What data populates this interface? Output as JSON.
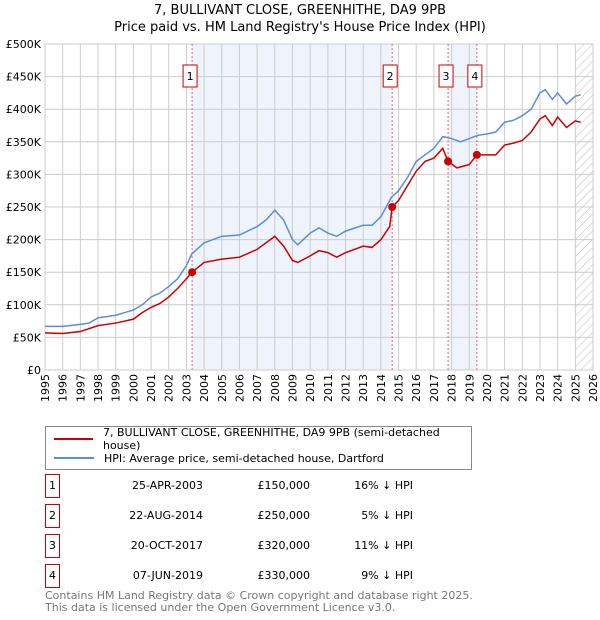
{
  "chart_data": {
    "type": "line",
    "title": "7, BULLIVANT CLOSE, GREENHITHE, DA9 9PB",
    "subtitle": "Price paid vs. HM Land Registry's House Price Index (HPI)",
    "xlim": [
      1995,
      2026
    ],
    "ylim": [
      0,
      500000
    ],
    "x_ticks": [
      "1995",
      "1996",
      "1997",
      "1998",
      "1999",
      "2000",
      "2001",
      "2002",
      "2003",
      "2004",
      "2005",
      "2006",
      "2007",
      "2008",
      "2009",
      "2010",
      "2011",
      "2012",
      "2013",
      "2014",
      "2015",
      "2016",
      "2017",
      "2018",
      "2019",
      "2020",
      "2021",
      "2022",
      "2023",
      "2024",
      "2025",
      "2026"
    ],
    "y_ticks": [
      {
        "v": 0,
        "l": "£0"
      },
      {
        "v": 50000,
        "l": "£50K"
      },
      {
        "v": 100000,
        "l": "£100K"
      },
      {
        "v": 150000,
        "l": "£150K"
      },
      {
        "v": 200000,
        "l": "£200K"
      },
      {
        "v": 250000,
        "l": "£250K"
      },
      {
        "v": 300000,
        "l": "£300K"
      },
      {
        "v": 350000,
        "l": "£350K"
      },
      {
        "v": 400000,
        "l": "£400K"
      },
      {
        "v": 450000,
        "l": "£450K"
      },
      {
        "v": 500000,
        "l": "£500K"
      }
    ],
    "grid": true,
    "series": [
      {
        "name": "7, BULLIVANT CLOSE, GREENHITHE, DA9 9PB (semi-detached house)",
        "color": "#cc0000",
        "points": [
          [
            1995,
            57
          ],
          [
            1996,
            56
          ],
          [
            1997,
            59
          ],
          [
            1998,
            68
          ],
          [
            1999,
            72
          ],
          [
            2000,
            78
          ],
          [
            2000.5,
            88
          ],
          [
            2001,
            96
          ],
          [
            2001.5,
            102
          ],
          [
            2002,
            112
          ],
          [
            2002.5,
            125
          ],
          [
            2003,
            140
          ],
          [
            2003.32,
            150
          ],
          [
            2004,
            165
          ],
          [
            2005,
            170
          ],
          [
            2006,
            173
          ],
          [
            2007,
            185
          ],
          [
            2008,
            205
          ],
          [
            2008.5,
            190
          ],
          [
            2009,
            168
          ],
          [
            2009.3,
            165
          ],
          [
            2010,
            175
          ],
          [
            2010.5,
            183
          ],
          [
            2011,
            180
          ],
          [
            2011.5,
            173
          ],
          [
            2012,
            180
          ],
          [
            2013,
            190
          ],
          [
            2013.5,
            188
          ],
          [
            2014,
            200
          ],
          [
            2014.5,
            220
          ],
          [
            2014.64,
            250
          ],
          [
            2015,
            260
          ],
          [
            2016,
            305
          ],
          [
            2016.5,
            320
          ],
          [
            2017,
            325
          ],
          [
            2017.5,
            340
          ],
          [
            2017.8,
            320
          ],
          [
            2018.3,
            310
          ],
          [
            2019,
            315
          ],
          [
            2019.43,
            330
          ],
          [
            2020,
            330
          ],
          [
            2020.5,
            330
          ],
          [
            2021,
            345
          ],
          [
            2021.5,
            348
          ],
          [
            2022,
            352
          ],
          [
            2022.5,
            365
          ],
          [
            2023,
            385
          ],
          [
            2023.3,
            390
          ],
          [
            2023.7,
            375
          ],
          [
            2024,
            388
          ],
          [
            2024.5,
            372
          ],
          [
            2025,
            382
          ],
          [
            2025.3,
            380
          ]
        ]
      },
      {
        "name": "HPI: Average price, semi-detached house, Dartford",
        "color": "#5b8ed6",
        "points": [
          [
            1995,
            67
          ],
          [
            1996,
            67
          ],
          [
            1997,
            70
          ],
          [
            1997.5,
            72
          ],
          [
            1998,
            80
          ],
          [
            1999,
            84
          ],
          [
            2000,
            92
          ],
          [
            2000.5,
            100
          ],
          [
            2001,
            112
          ],
          [
            2001.5,
            118
          ],
          [
            2002,
            128
          ],
          [
            2002.5,
            140
          ],
          [
            2003,
            160
          ],
          [
            2003.3,
            178
          ],
          [
            2004,
            195
          ],
          [
            2004.5,
            200
          ],
          [
            2005,
            205
          ],
          [
            2006,
            207
          ],
          [
            2007,
            220
          ],
          [
            2007.5,
            230
          ],
          [
            2008,
            245
          ],
          [
            2008.5,
            230
          ],
          [
            2009,
            200
          ],
          [
            2009.3,
            192
          ],
          [
            2010,
            210
          ],
          [
            2010.5,
            218
          ],
          [
            2011,
            210
          ],
          [
            2011.5,
            205
          ],
          [
            2012,
            213
          ],
          [
            2013,
            222
          ],
          [
            2013.5,
            222
          ],
          [
            2014,
            235
          ],
          [
            2014.6,
            265
          ],
          [
            2015,
            275
          ],
          [
            2015.5,
            295
          ],
          [
            2016,
            320
          ],
          [
            2016.5,
            330
          ],
          [
            2017,
            340
          ],
          [
            2017.5,
            358
          ],
          [
            2018,
            355
          ],
          [
            2018.5,
            350
          ],
          [
            2019,
            355
          ],
          [
            2019.5,
            360
          ],
          [
            2020,
            362
          ],
          [
            2020.5,
            365
          ],
          [
            2021,
            380
          ],
          [
            2021.5,
            383
          ],
          [
            2022,
            390
          ],
          [
            2022.5,
            400
          ],
          [
            2023,
            425
          ],
          [
            2023.3,
            430
          ],
          [
            2023.7,
            415
          ],
          [
            2024,
            425
          ],
          [
            2024.5,
            408
          ],
          [
            2025,
            420
          ],
          [
            2025.3,
            422
          ]
        ]
      }
    ],
    "unit": "thousands GBP",
    "sales": [
      {
        "n": "1",
        "x": 2003.32,
        "y": 150
      },
      {
        "n": "2",
        "x": 2014.64,
        "y": 250
      },
      {
        "n": "3",
        "x": 2017.8,
        "y": 320
      },
      {
        "n": "4",
        "x": 2019.43,
        "y": 330
      }
    ],
    "shaded_ranges": [
      [
        2003.32,
        2014.64
      ],
      [
        2017.8,
        2019.43
      ]
    ],
    "forecast_hatch_from": 2025.0
  },
  "legend": {
    "red": "7, BULLIVANT CLOSE, GREENHITHE, DA9 9PB (semi-detached house)",
    "blue": "HPI: Average price, semi-detached house, Dartford"
  },
  "transactions": [
    {
      "n": "1",
      "date": "25-APR-2003",
      "price": "£150,000",
      "hpi": "16% ↓ HPI"
    },
    {
      "n": "2",
      "date": "22-AUG-2014",
      "price": "£250,000",
      "hpi": "5% ↓ HPI"
    },
    {
      "n": "3",
      "date": "20-OCT-2017",
      "price": "£320,000",
      "hpi": "11% ↓ HPI"
    },
    {
      "n": "4",
      "date": "07-JUN-2019",
      "price": "£330,000",
      "hpi": "9% ↓ HPI"
    }
  ],
  "footer": {
    "line1": "Contains HM Land Registry data © Crown copyright and database right 2025.",
    "line2": "This data is licensed under the Open Government Licence v3.0."
  }
}
